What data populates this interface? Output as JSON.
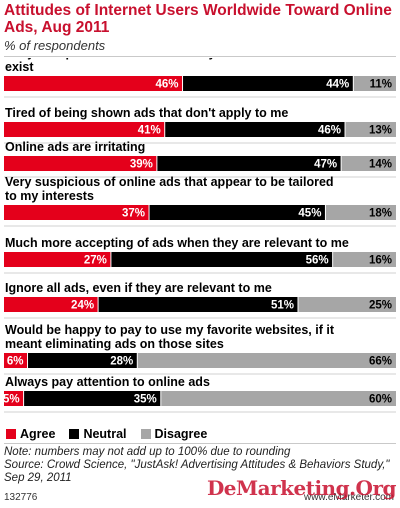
{
  "header": {
    "title": "Attitudes of Internet Users Worldwide Toward Online Ads, Aug 2011",
    "subtitle": "% of respondents"
  },
  "chart_data": {
    "type": "bar",
    "stacked": true,
    "orientation": "horizontal",
    "categories": [
      "Fully accept that ads are necessary to allow websites to exist",
      "Tired of being shown ads that don't apply to me",
      "Online ads are irritating",
      "Very suspicious of online ads that appear to be tailored to my interests",
      "Much more accepting of ads when they are relevant to me",
      "Ignore all ads, even if they are relevant to me",
      "Would be happy to pay to use my favorite websites, if it meant eliminating ads on those sites",
      "Always pay attention to online ads"
    ],
    "series": [
      {
        "name": "Agree",
        "color": "#e4001b",
        "values": [
          46,
          41,
          39,
          37,
          27,
          24,
          6,
          5
        ]
      },
      {
        "name": "Neutral",
        "color": "#000000",
        "values": [
          44,
          46,
          47,
          45,
          56,
          51,
          28,
          35
        ]
      },
      {
        "name": "Disagree",
        "color": "#a6a6a6",
        "values": [
          11,
          13,
          14,
          18,
          16,
          25,
          66,
          60
        ]
      }
    ],
    "value_suffix": "%",
    "legend_position": "bottom-left"
  },
  "footer": {
    "note": "Note: numbers may not add up to 100% due to rounding",
    "source": "Source: Crowd Science, \"JustAsk! Advertising Attitudes & Behaviors Study,\" Sep 29, 2011",
    "chart_id": "132776",
    "brand": "www.eMarketer.com",
    "watermark": "DeMarketing.Org"
  }
}
